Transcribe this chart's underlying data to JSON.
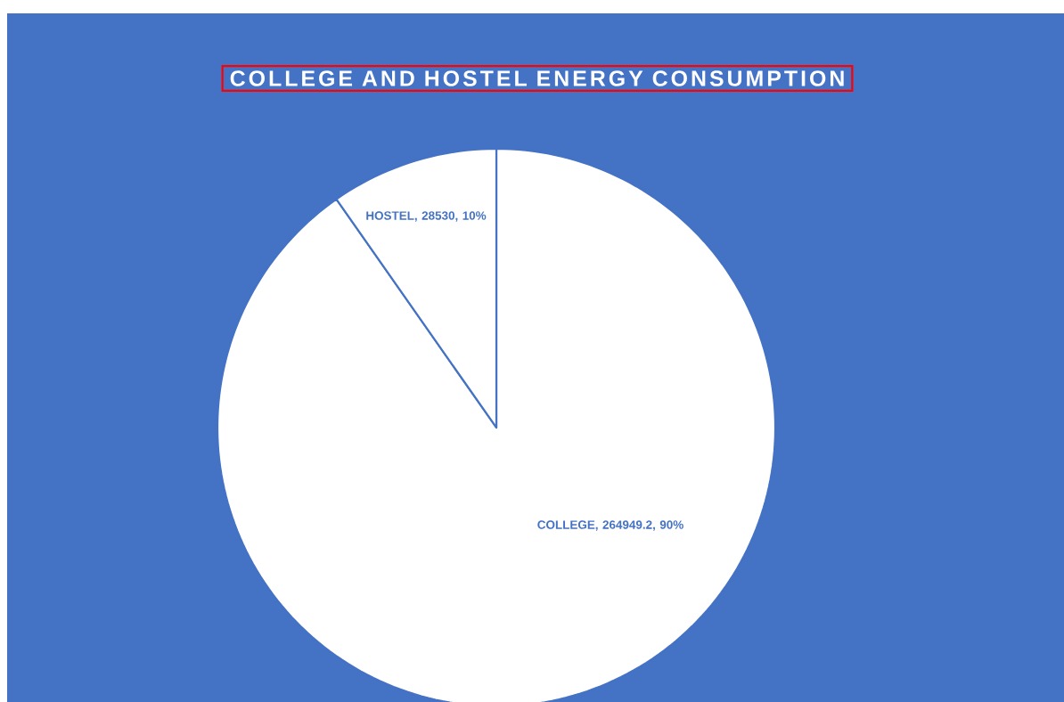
{
  "chart_data": {
    "type": "pie",
    "title": "COLLEGE AND HOSTEL ENERGY CONSUMPTION",
    "categories": [
      "COLLEGE",
      "HOSTEL"
    ],
    "values": [
      264949.2,
      28530
    ],
    "colors": [
      "#ffffff",
      "#ffffff"
    ],
    "value_labels": [
      ", 264949.2, 90%",
      ", 28530, 10%"
    ]
  }
}
